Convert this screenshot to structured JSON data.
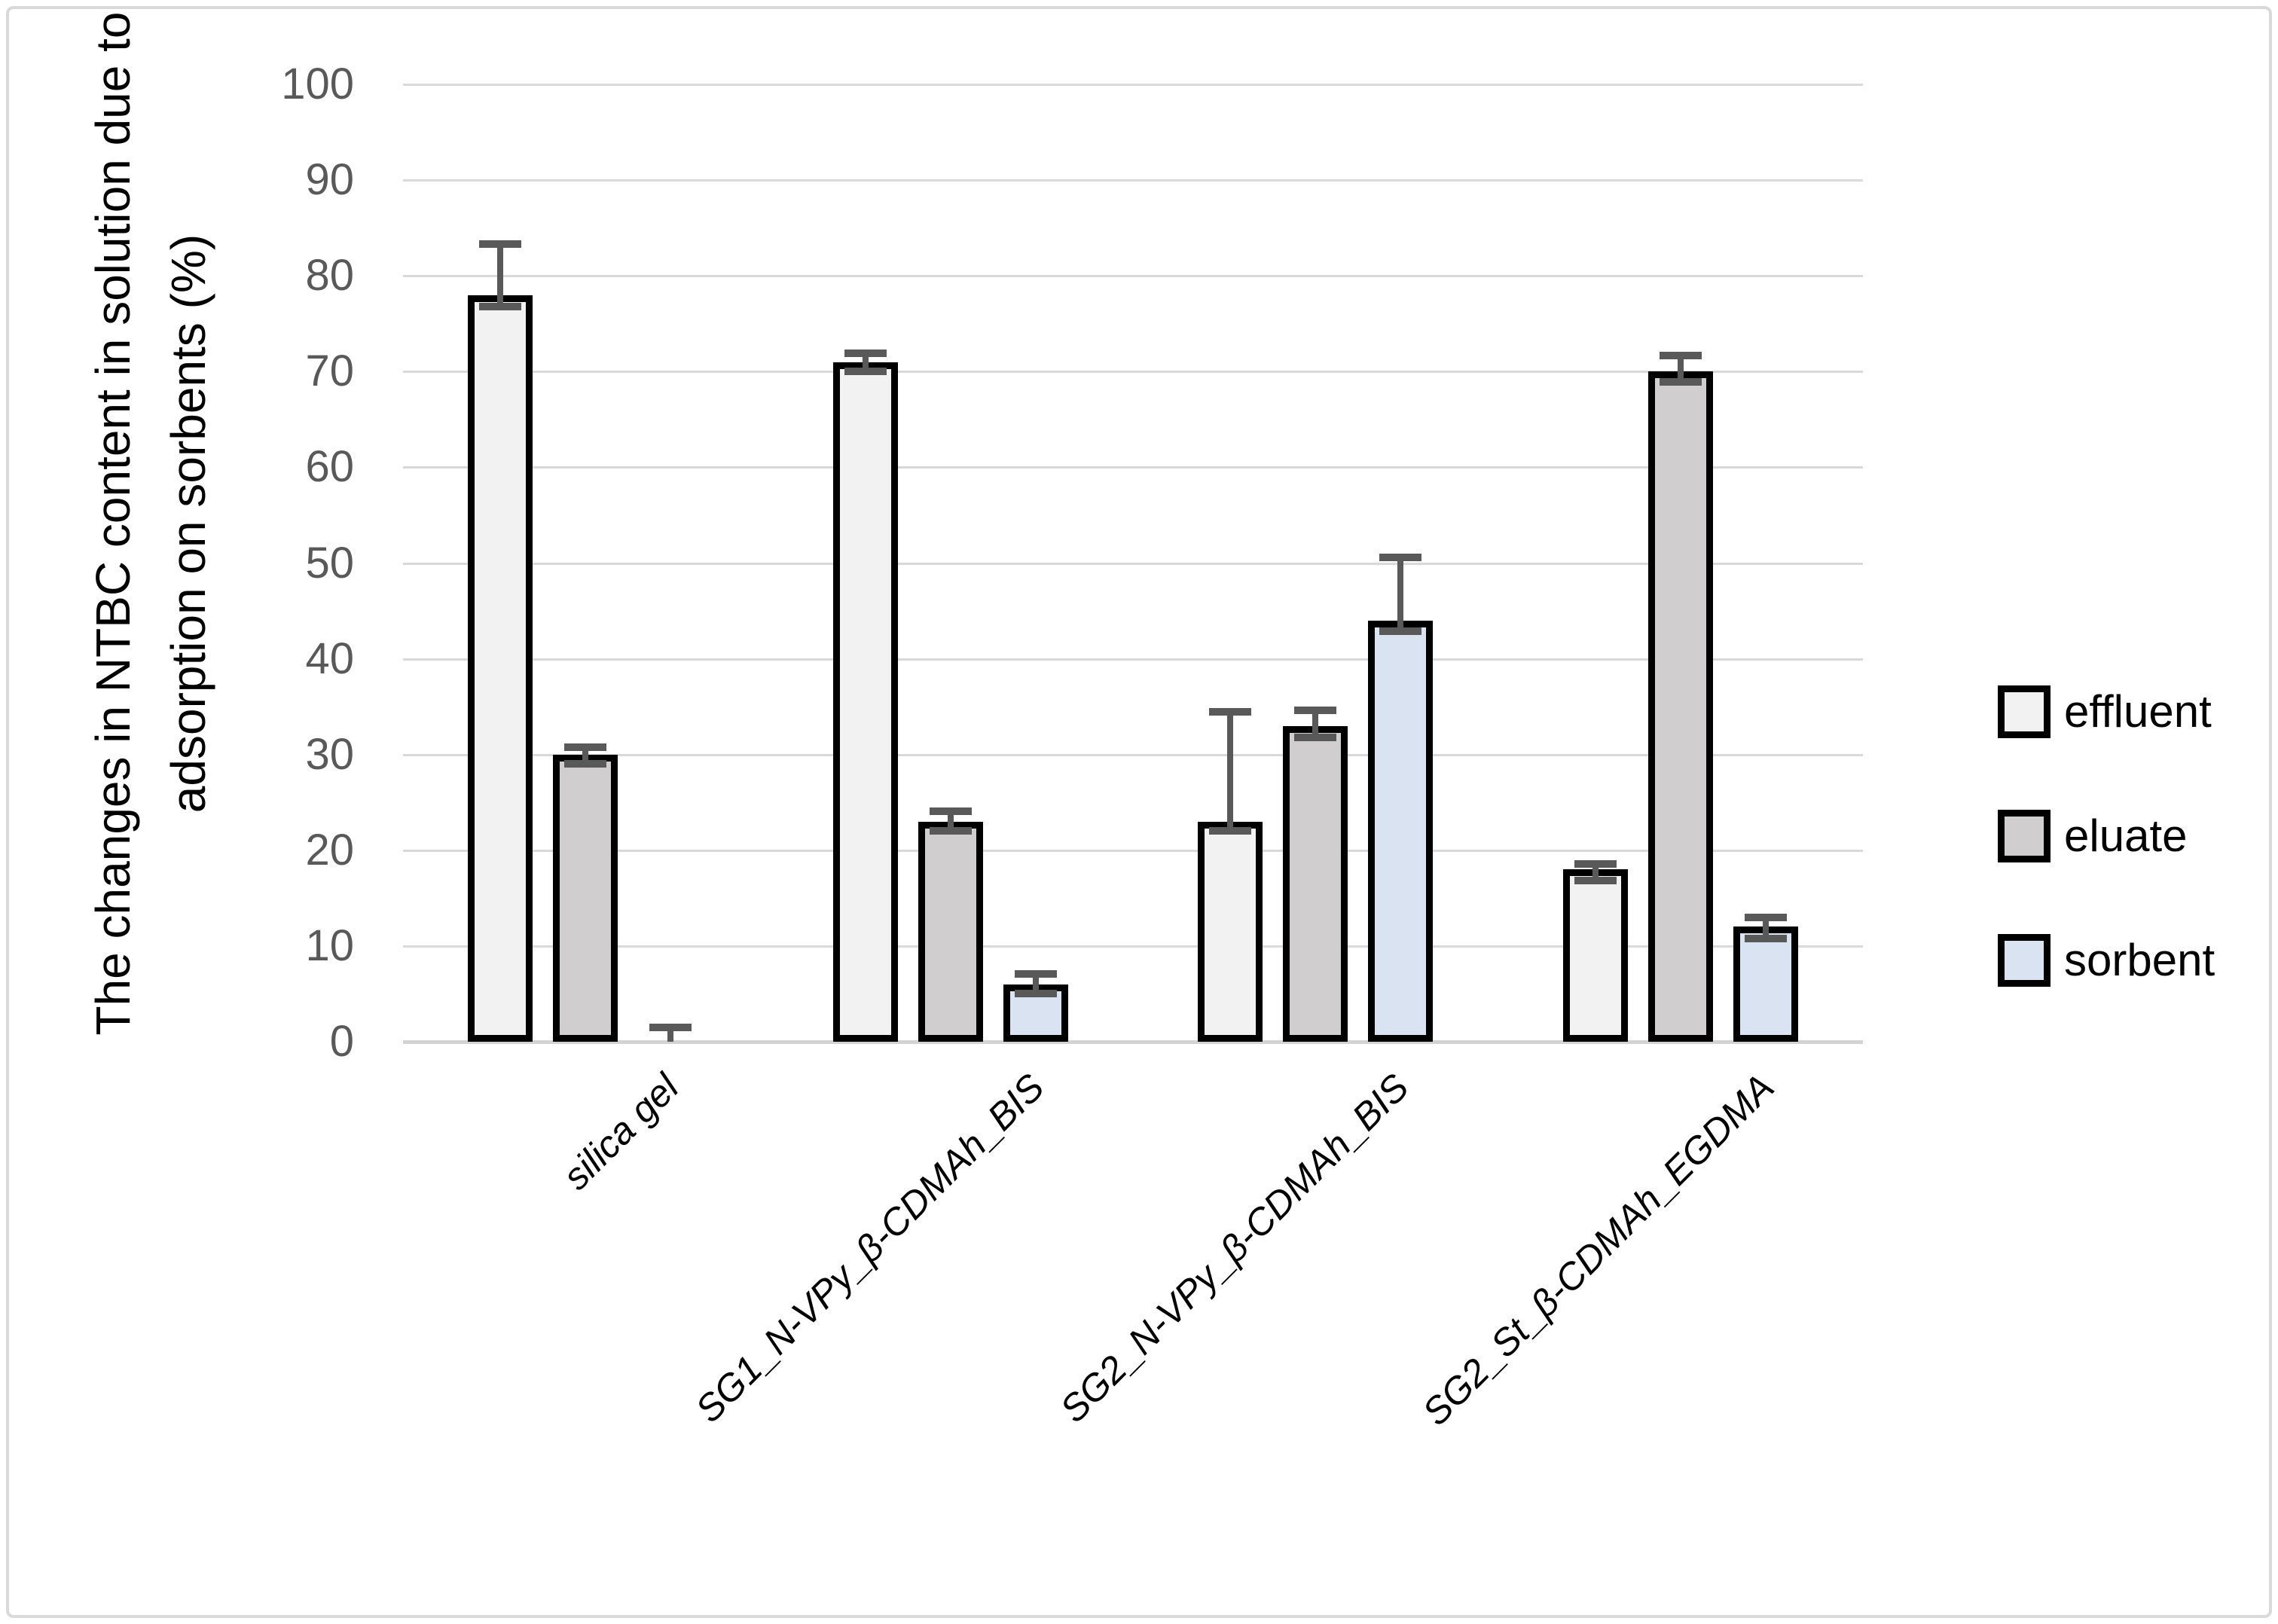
{
  "figure": {
    "y_axis_title_line1": "The changes in NTBC content in solution due to",
    "y_axis_title_line2": "adsorption on sorbents (%)"
  },
  "colors": {
    "effluent_fill": "#f2f2f2",
    "eluate_fill": "#d0cece",
    "sorbent_fill": "#dae3f1",
    "bar_border": "#000000",
    "error_bar": "#595959",
    "gridline": "#d9d9d9",
    "tick_text": "#595959",
    "label_text": "#000000"
  },
  "chart_data": {
    "type": "bar",
    "title": "",
    "xlabel": "",
    "ylabel": "The changes in NTBC content in solution due to adsorption on sorbents (%)",
    "ylim": [
      0,
      100
    ],
    "yticks": [
      0,
      10,
      20,
      30,
      40,
      50,
      60,
      70,
      80,
      90,
      100
    ],
    "grid": true,
    "legend_position": "right",
    "categories": [
      "silica gel",
      "SG1_N-VPy_β-CDMAh_BIS",
      "SG2_N-VPy_β-CDMAh_BIS",
      "SG2_St_β-CDMAh_EGDMA"
    ],
    "series": [
      {
        "name": "effluent",
        "fill": "#f2f2f2",
        "values": [
          78,
          71,
          23,
          18
        ],
        "error_plus": [
          5.3,
          0.9,
          11.5,
          0.6
        ],
        "error_minus": [
          1.2,
          1.0,
          1.0,
          1.2
        ]
      },
      {
        "name": "eluate",
        "fill": "#d0cece",
        "values": [
          30,
          23,
          33,
          70
        ],
        "error_plus": [
          0.8,
          1.1,
          1.6,
          1.7
        ],
        "error_minus": [
          1.0,
          1.0,
          1.2,
          1.1
        ]
      },
      {
        "name": "sorbent",
        "fill": "#dae3f1",
        "values": [
          0,
          6,
          44,
          12
        ],
        "error_plus": [
          1.5,
          1.1,
          6.6,
          1.0
        ],
        "error_minus": [
          0,
          1.0,
          1.1,
          1.2
        ]
      }
    ]
  }
}
